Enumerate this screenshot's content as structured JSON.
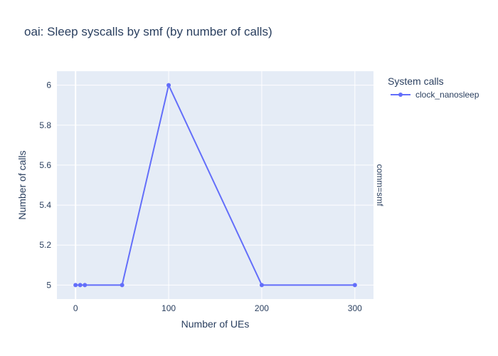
{
  "chart_data": {
    "type": "line",
    "title": "oai: Sleep syscalls by smf (by number of calls)",
    "xlabel": "Number of UEs",
    "ylabel": "Number of calls",
    "facet_label": "comm=smf",
    "legend": {
      "title": "System calls",
      "placement": "right"
    },
    "x": [
      0,
      5,
      10,
      50,
      100,
      200,
      300
    ],
    "series": [
      {
        "name": "clock_nanosleep",
        "color": "#636efa",
        "values": [
          5,
          5,
          5,
          5,
          6,
          5,
          5
        ]
      }
    ],
    "xlim": [
      -20,
      320
    ],
    "ylim": [
      4.93,
      6.07
    ],
    "xticks": [
      0,
      100,
      200,
      300
    ],
    "yticks": [
      5,
      5.2,
      5.4,
      5.6,
      5.8,
      6
    ],
    "grid": true
  },
  "colors": {
    "plot_bg": "#e5ecf6",
    "grid": "#ffffff",
    "text": "#2a3f5f"
  }
}
